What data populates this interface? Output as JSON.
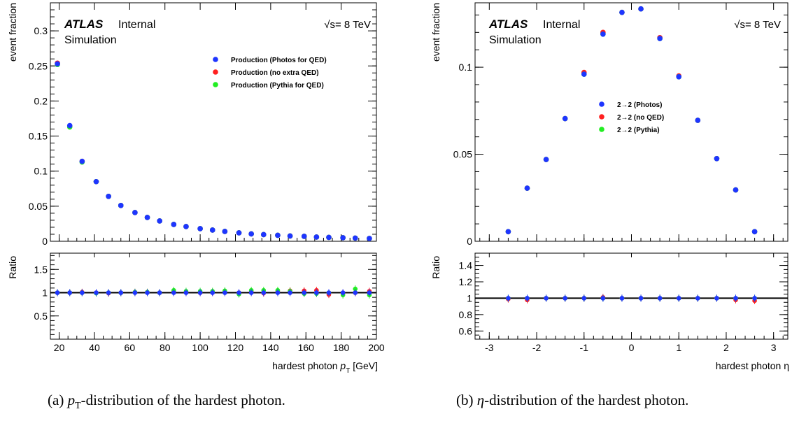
{
  "captions": {
    "a": "(a) pT-distribution of the hardest photon.",
    "b": "(b) η-distribution of the hardest photon."
  },
  "chart_data": [
    {
      "type": "scatter",
      "atlas_label": "ATLAS",
      "atlas_status": "Internal",
      "sim_label": "Simulation",
      "energy_label": "√s= 8 TeV",
      "ylabel_main": "event fraction",
      "ylabel_ratio": "Ratio",
      "xlabel": "hardest photon pT [GeV]",
      "xlim": [
        15,
        200
      ],
      "ylim_main": [
        0,
        0.34
      ],
      "ylim_ratio": [
        0,
        1.85
      ],
      "x_ticks": [
        20,
        40,
        60,
        80,
        100,
        120,
        140,
        160,
        180,
        200
      ],
      "y_ticks_main": [
        0,
        0.05,
        0.1,
        0.15,
        0.2,
        0.25,
        0.3
      ],
      "y_ticks_ratio": [
        0.5,
        1,
        1.5
      ],
      "x": [
        19,
        26,
        33,
        41,
        48,
        55,
        63,
        70,
        77,
        85,
        92,
        100,
        107,
        114,
        122,
        129,
        136,
        144,
        151,
        159,
        166,
        173,
        181,
        188,
        196
      ],
      "series": [
        {
          "name": "Production (Photos for QED)",
          "color": "#1e35ff",
          "values": [
            0.253,
            0.165,
            0.114,
            0.085,
            0.064,
            0.051,
            0.041,
            0.034,
            0.029,
            0.024,
            0.021,
            0.018,
            0.016,
            0.014,
            0.012,
            0.0105,
            0.0095,
            0.0085,
            0.0075,
            0.007,
            0.006,
            0.0055,
            0.005,
            0.0045,
            0.004
          ],
          "ratio": [
            1,
            1,
            1,
            1,
            1,
            1,
            1,
            1,
            1,
            1,
            1,
            1,
            1,
            1,
            1,
            1,
            1,
            1,
            1,
            1,
            1,
            1,
            1,
            1,
            1
          ]
        },
        {
          "name": "Production (no extra QED)",
          "color": "#ff2020",
          "values": [
            0.254,
            0.164,
            0.114,
            0.085,
            0.064,
            0.051,
            0.041,
            0.034,
            0.029,
            0.024,
            0.021,
            0.018,
            0.016,
            0.014,
            0.012,
            0.0105,
            0.0095,
            0.0085,
            0.0075,
            0.007,
            0.006,
            0.0055,
            0.005,
            0.0045,
            0.004
          ],
          "ratio": [
            1.0,
            1.0,
            1.01,
            1.0,
            0.99,
            1.0,
            1.01,
            1.01,
            1.0,
            1.02,
            1.01,
            1.0,
            1.01,
            1.02,
            1.0,
            1.02,
            0.99,
            1.03,
            1.04,
            1.04,
            1.05,
            0.96,
            0.99,
            1.0,
            1.03
          ]
        },
        {
          "name": "Production (Pythia for QED)",
          "color": "#22ee22",
          "values": [
            0.252,
            0.163,
            0.113,
            0.085,
            0.064,
            0.051,
            0.041,
            0.034,
            0.029,
            0.024,
            0.021,
            0.018,
            0.016,
            0.014,
            0.012,
            0.0105,
            0.0095,
            0.0085,
            0.0075,
            0.007,
            0.006,
            0.0055,
            0.005,
            0.0045,
            0.004
          ],
          "ratio": [
            1.0,
            1.0,
            1.0,
            0.99,
            1.0,
            1.0,
            1.01,
            1.01,
            1.0,
            1.05,
            1.03,
            1.03,
            1.03,
            1.04,
            0.97,
            1.05,
            1.05,
            1.05,
            1.03,
            0.98,
            0.98,
            1.0,
            0.95,
            1.08,
            0.95
          ]
        }
      ]
    },
    {
      "type": "scatter",
      "atlas_label": "ATLAS",
      "atlas_status": "Internal",
      "sim_label": "Simulation",
      "energy_label": "√s= 8 TeV",
      "ylabel_main": "event fraction",
      "ylabel_ratio": "Ratio",
      "xlabel": "hardest photon η",
      "xlim": [
        -3.3,
        3.3
      ],
      "ylim_main": [
        0,
        0.137
      ],
      "ylim_ratio": [
        0.5,
        1.55
      ],
      "x_ticks": [
        -3,
        -2,
        -1,
        0,
        1,
        2,
        3
      ],
      "y_ticks_main": [
        0,
        0.05,
        0.1
      ],
      "y_ticks_ratio": [
        0.6,
        0.8,
        1,
        1.2,
        1.4
      ],
      "x": [
        -2.6,
        -2.2,
        -1.8,
        -1.4,
        -1.0,
        -0.6,
        -0.2,
        0.2,
        0.6,
        1.0,
        1.4,
        1.8,
        2.2,
        2.6
      ],
      "series": [
        {
          "name": "2→2 (Photos)",
          "color": "#1e35ff",
          "values": [
            0.0055,
            0.0305,
            0.047,
            0.0705,
            0.096,
            0.119,
            0.1315,
            0.1335,
            0.1165,
            0.0945,
            0.0695,
            0.0475,
            0.0295,
            0.0055
          ],
          "ratio": [
            1,
            1,
            1,
            1,
            1,
            1,
            1,
            1,
            1,
            1,
            1,
            1,
            1,
            1
          ]
        },
        {
          "name": "2→2 (no QED)",
          "color": "#ff2020",
          "values": [
            0.0055,
            0.0305,
            0.047,
            0.0705,
            0.097,
            0.12,
            0.1315,
            0.1335,
            0.117,
            0.095,
            0.0695,
            0.0475,
            0.0295,
            0.0055
          ],
          "ratio": [
            0.99,
            0.98,
            1.0,
            1.0,
            1.0,
            1.01,
            1.0,
            1.0,
            1.0,
            1.0,
            1.0,
            1.0,
            0.98,
            0.97
          ]
        },
        {
          "name": "2→2 (Pythia)",
          "color": "#22ee22",
          "values": [
            0.0055,
            0.0305,
            0.047,
            0.0705,
            0.096,
            0.119,
            0.1315,
            0.1335,
            0.1165,
            0.0945,
            0.0695,
            0.0475,
            0.0295,
            0.0055
          ],
          "ratio": [
            1.0,
            1.0,
            1.0,
            1.0,
            1.0,
            1.0,
            1.0,
            1.0,
            1.0,
            1.0,
            1.0,
            1.0,
            1.0,
            1.0
          ]
        }
      ]
    }
  ]
}
